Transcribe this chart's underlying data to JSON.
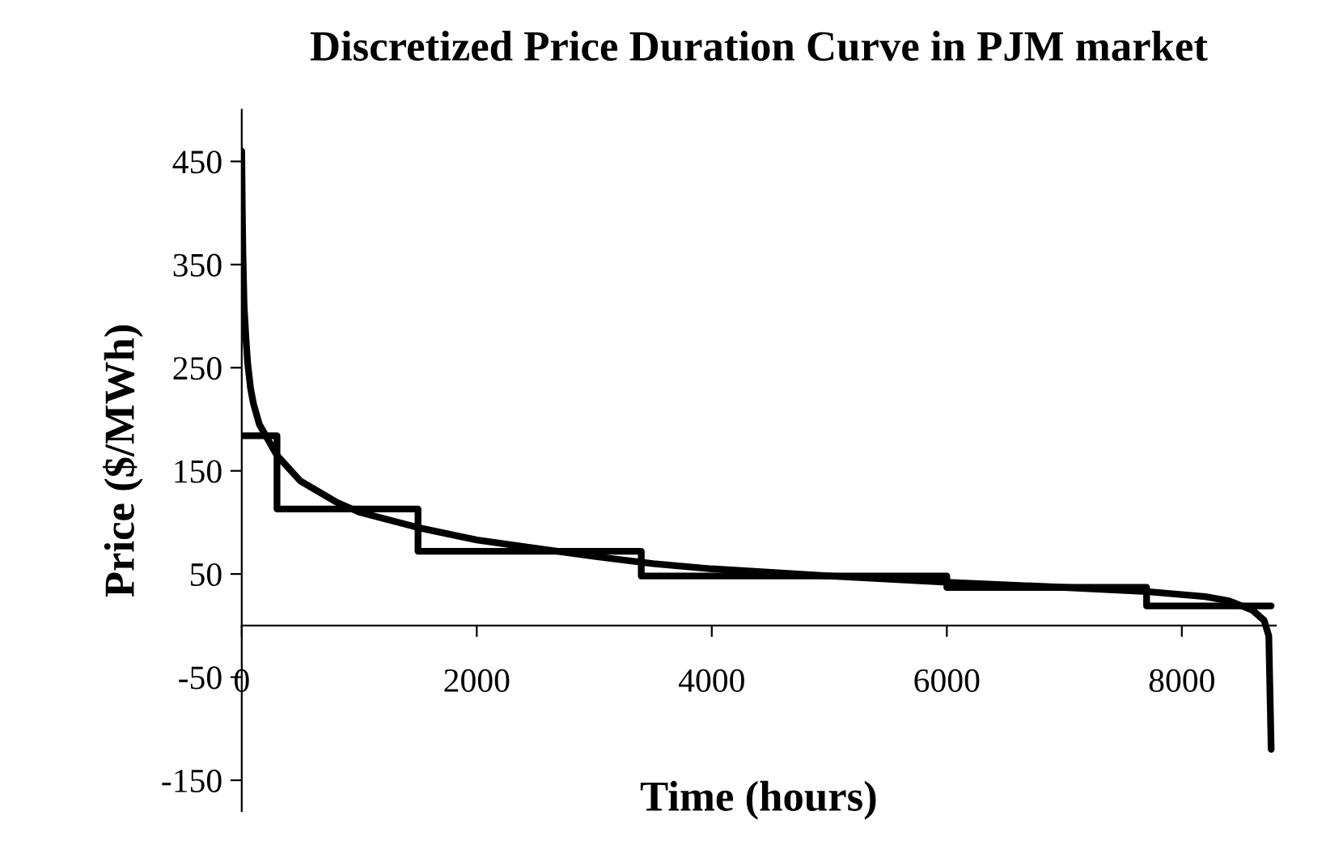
{
  "chart_data": {
    "type": "line",
    "title": "Discretized Price Duration Curve in PJM market",
    "xlabel": "Time (hours)",
    "ylabel": "Price ($/MWh)",
    "xlim": [
      0,
      8800
    ],
    "ylim": [
      -180,
      500
    ],
    "xticks": [
      0,
      2000,
      4000,
      6000,
      8000
    ],
    "yticks": [
      -150,
      -50,
      50,
      150,
      250,
      350,
      450
    ],
    "grid": false,
    "legend": false,
    "marker": "none",
    "line_style": "solid",
    "series": [
      {
        "color": "#000000",
        "x": [
          0,
          5,
          10,
          20,
          35,
          50,
          75,
          100,
          150,
          200,
          300,
          500,
          800,
          1000,
          1500,
          2000,
          2500,
          3000,
          3500,
          4000,
          5000,
          6000,
          7000,
          7700,
          8200,
          8400,
          8600,
          8700,
          8740,
          8760
        ],
        "values": [
          460,
          400,
          360,
          310,
          280,
          255,
          230,
          215,
          195,
          185,
          165,
          140,
          120,
          110,
          95,
          83,
          75,
          67,
          60,
          55,
          48,
          42,
          37,
          33,
          28,
          24,
          15,
          5,
          -10,
          -120
        ]
      },
      {
        "type": "step",
        "color": "#000000",
        "x": [
          0,
          300,
          1500,
          3400,
          6000,
          7700,
          8760
        ],
        "values": [
          184,
          113,
          72,
          48,
          37,
          19,
          19
        ]
      }
    ]
  }
}
